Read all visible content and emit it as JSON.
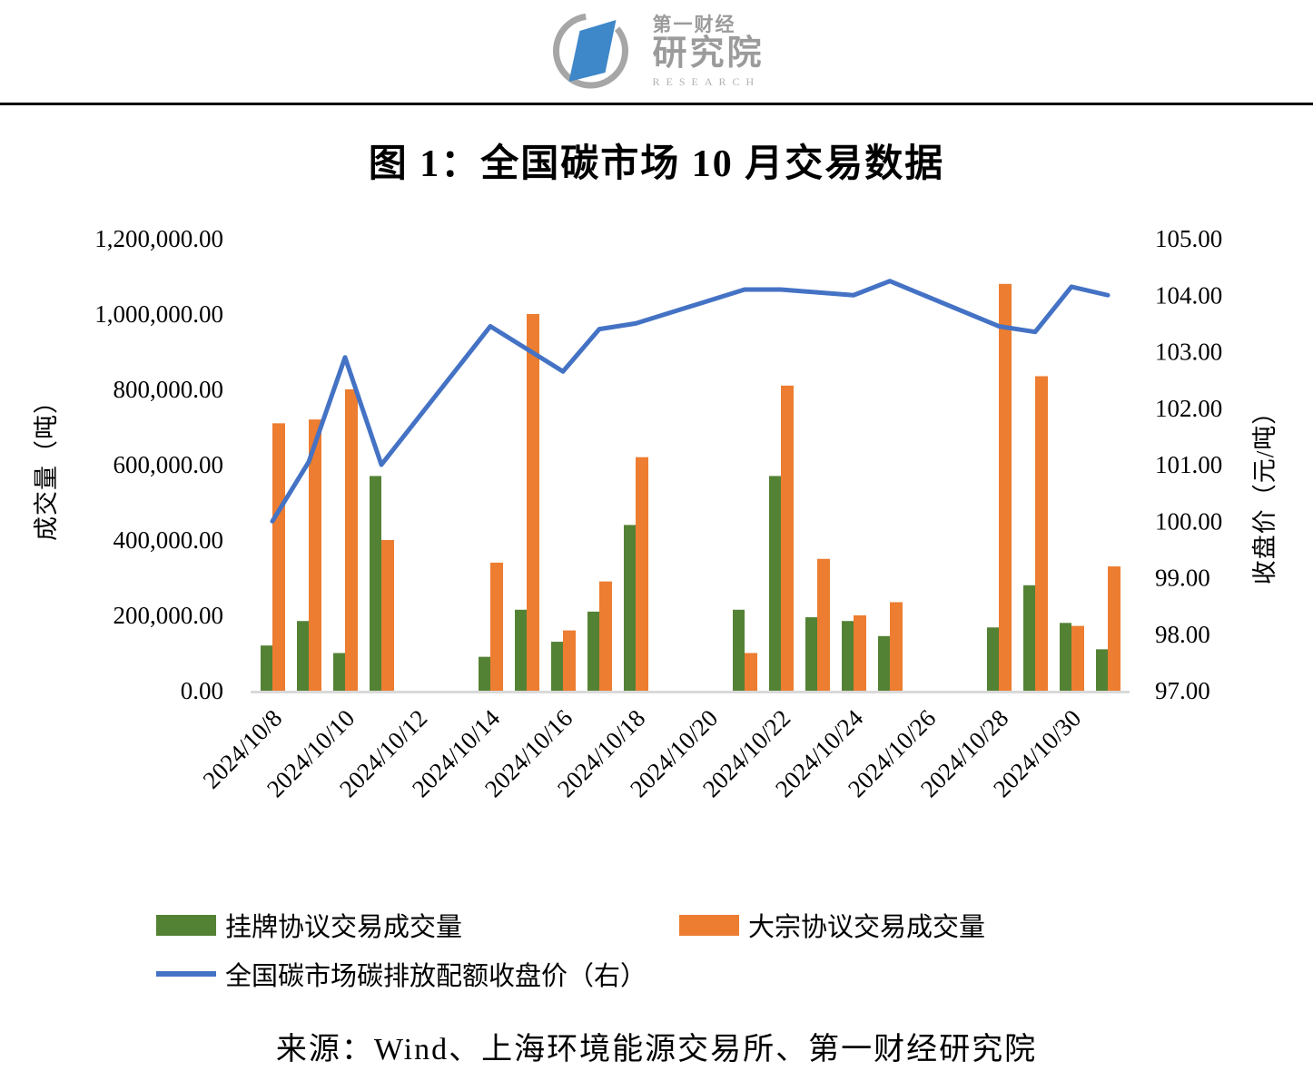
{
  "header": {
    "logo": {
      "brand": "第一财经",
      "institute": "研究院",
      "subtitle": "RESEARCH"
    }
  },
  "title": "图 1：全国碳市场 10 月交易数据",
  "chart_data": {
    "type": "bar",
    "subtype": "combo-bar-line-dual-axis",
    "x_dates": [
      "2024/10/8",
      "2024/10/9",
      "2024/10/10",
      "2024/10/11",
      "2024/10/14",
      "2024/10/15",
      "2024/10/16",
      "2024/10/17",
      "2024/10/18",
      "2024/10/21",
      "2024/10/22",
      "2024/10/23",
      "2024/10/24",
      "2024/10/25",
      "2024/10/28",
      "2024/10/29",
      "2024/10/30",
      "2024/10/31"
    ],
    "series": [
      {
        "name": "挂牌协议交易成交量",
        "type": "bar",
        "axis": "left",
        "color": "#548235",
        "values": [
          120000,
          185000,
          100000,
          570000,
          90000,
          215000,
          130000,
          210000,
          440000,
          215000,
          570000,
          195000,
          185000,
          145000,
          168000,
          280000,
          180000,
          110000
        ]
      },
      {
        "name": "大宗协议交易成交量",
        "type": "bar",
        "axis": "left",
        "color": "#ED7D31",
        "values": [
          710000,
          720000,
          800000,
          400000,
          340000,
          1000000,
          160000,
          290000,
          620000,
          100000,
          810000,
          350000,
          200000,
          235000,
          1080000,
          835000,
          172000,
          330000
        ]
      },
      {
        "name": "全国碳市场碳排放配额收盘价（右）",
        "type": "line",
        "axis": "right",
        "color": "#4472C4",
        "values": [
          100.0,
          101.05,
          102.9,
          101.0,
          103.45,
          103.05,
          102.65,
          103.4,
          103.5,
          104.1,
          104.1,
          104.05,
          104.0,
          104.25,
          103.45,
          103.35,
          104.15,
          104.0
        ]
      }
    ],
    "left_axis": {
      "title": "成交量（吨）",
      "min": 0,
      "max": 1200000,
      "ticks": [
        "1,200,000.00",
        "1,000,000.00",
        "800,000.00",
        "600,000.00",
        "400,000.00",
        "200,000.00",
        "0.00"
      ]
    },
    "right_axis": {
      "title": "收盘价（元/吨）",
      "min": 97,
      "max": 105,
      "ticks": [
        "105.00",
        "104.00",
        "103.00",
        "102.00",
        "101.00",
        "100.00",
        "99.00",
        "98.00",
        "97.00"
      ]
    },
    "x_axis": {
      "first_day": 8,
      "last_day": 31,
      "tick_labels": [
        "2024/10/8",
        "2024/10/10",
        "2024/10/12",
        "2024/10/14",
        "2024/10/16",
        "2024/10/18",
        "2024/10/20",
        "2024/10/22",
        "2024/10/24",
        "2024/10/26",
        "2024/10/28",
        "2024/10/30"
      ]
    },
    "grid": "off",
    "legend_position": "bottom-left",
    "baseline_color": "#d9d9d9"
  },
  "source": "来源：Wind、上海环境能源交易所、第一财经研究院",
  "colors": {
    "listed_bar": "#548235",
    "block_bar": "#ED7D31",
    "price_line": "#4472C4",
    "logo_gray": "#9b9b9b",
    "logo_blue": "#3e87c9"
  }
}
